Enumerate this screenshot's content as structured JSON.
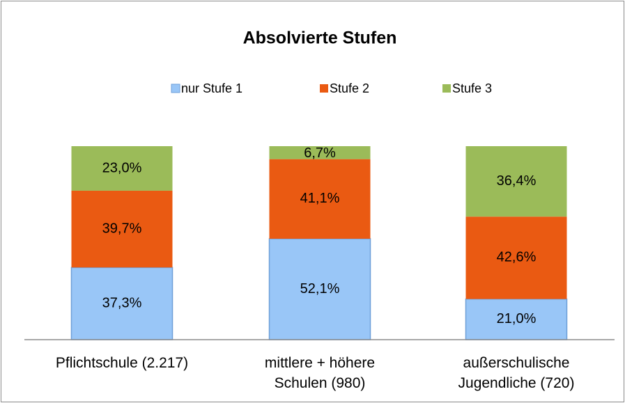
{
  "chart_data": {
    "type": "bar",
    "stacked": true,
    "title": "Absolvierte Stufen",
    "categories": [
      "Pflichtschule (2.217)",
      "mittlere + höhere\nSchulen (980)",
      "außerschulische\nJugendliche (720)"
    ],
    "series": [
      {
        "name": "nur Stufe 1",
        "color": "#99c6f7",
        "values": [
          37.3,
          52.1,
          21.0
        ],
        "value_labels": [
          "37,3%",
          "52,1%",
          "21,0%"
        ]
      },
      {
        "name": "Stufe 2",
        "color": "#ea5a12",
        "values": [
          39.7,
          41.1,
          42.6
        ],
        "value_labels": [
          "39,7%",
          "41,1%",
          "42,6%"
        ]
      },
      {
        "name": "Stufe 3",
        "color": "#9bbb59",
        "values": [
          23.0,
          6.7,
          36.4
        ],
        "value_labels": [
          "23,0%",
          "6,7%",
          "36,4%"
        ]
      }
    ],
    "legend": "top"
  }
}
